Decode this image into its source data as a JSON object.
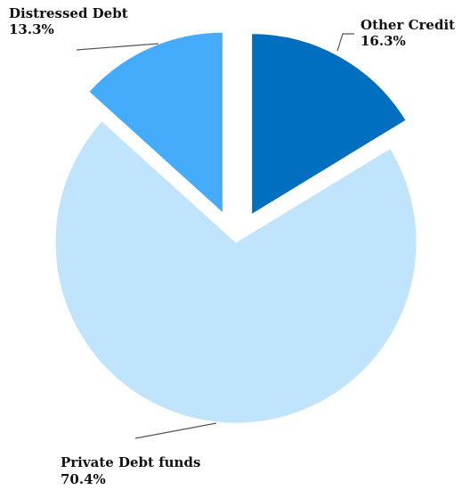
{
  "chart_data": {
    "type": "pie",
    "title": "",
    "slices": [
      {
        "name": "Other Credit",
        "value": 16.3,
        "value_label": "16.3%",
        "color": "#006fc0",
        "exploded": true
      },
      {
        "name": "Private Debt funds",
        "value": 70.4,
        "value_label": "70.4%",
        "color": "#c0e4fc",
        "exploded": false
      },
      {
        "name": "Distressed Debt",
        "value": 13.3,
        "value_label": "13.3%",
        "color": "#44acfa",
        "exploded": true
      }
    ],
    "start_angle_deg": 0,
    "direction": "clockwise",
    "legend": "none",
    "labels": "outside-with-leader-lines"
  }
}
